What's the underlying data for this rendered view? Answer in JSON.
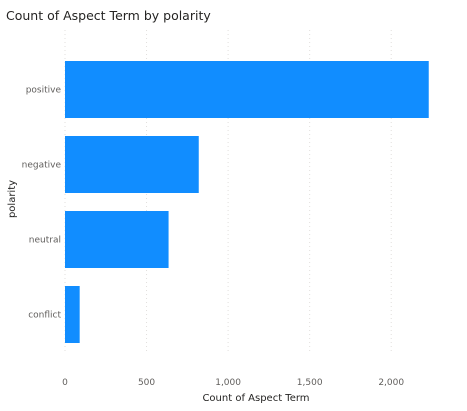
{
  "chart_data": {
    "type": "bar",
    "orientation": "horizontal",
    "title": "Count of Aspect Term by polarity",
    "xlabel": "Count of Aspect Term",
    "ylabel": "polarity",
    "categories": [
      "positive",
      "negative",
      "neutral",
      "conflict"
    ],
    "values": [
      2230,
      820,
      635,
      90
    ],
    "xlim": [
      0,
      2250
    ],
    "xticks": [
      0,
      500,
      1000,
      1500,
      2000
    ],
    "xtick_labels": [
      "0",
      "500",
      "1,000",
      "1,500",
      "2,000"
    ],
    "grid": "vertical-dotted",
    "legend": "none",
    "bar_color": "#118DFF"
  }
}
